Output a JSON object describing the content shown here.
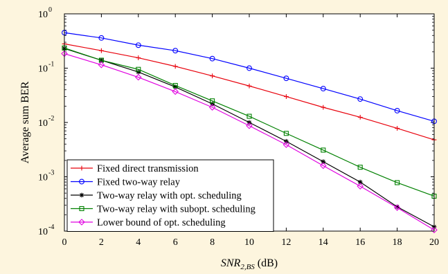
{
  "chart_data": {
    "type": "line",
    "ylabel": "Average sum BER",
    "xlabel_main": "SNR",
    "xlabel_sub": "2,BS",
    "xlabel_unit": " (dB)",
    "y_scale": "log",
    "xlim": [
      0,
      20
    ],
    "ylim": [
      0.0001,
      1
    ],
    "grid": false,
    "legend_position": "bottom-left",
    "x": [
      0,
      2,
      4,
      6,
      8,
      10,
      12,
      14,
      16,
      18,
      20
    ],
    "x_ticks": [
      "0",
      "2",
      "4",
      "6",
      "8",
      "10",
      "12",
      "14",
      "16",
      "18",
      "20"
    ],
    "y_ticks": [
      {
        "value": 1,
        "base": "10",
        "exp": "0"
      },
      {
        "value": 0.1,
        "base": "10",
        "exp": "-1"
      },
      {
        "value": 0.01,
        "base": "10",
        "exp": "-2"
      },
      {
        "value": 0.001,
        "base": "10",
        "exp": "-3"
      },
      {
        "value": 0.0001,
        "base": "10",
        "exp": "-4"
      }
    ],
    "series": [
      {
        "name": "Fixed direct transmission",
        "color": "#e8000b",
        "marker": "plus",
        "values": [
          0.28,
          0.21,
          0.155,
          0.108,
          0.072,
          0.047,
          0.03,
          0.019,
          0.0125,
          0.0078,
          0.0048
        ]
      },
      {
        "name": "Fixed two-way relay",
        "color": "#0000ff",
        "marker": "circle",
        "values": [
          0.45,
          0.36,
          0.265,
          0.21,
          0.15,
          0.1,
          0.065,
          0.042,
          0.027,
          0.0165,
          0.0105
        ]
      },
      {
        "name": "Two-way relay with opt. scheduling",
        "color": "#000000",
        "marker": "star",
        "values": [
          0.23,
          0.14,
          0.085,
          0.045,
          0.022,
          0.01,
          0.0045,
          0.0019,
          0.0008,
          0.00028,
          0.00012
        ]
      },
      {
        "name": "Two-way relay with subopt. scheduling",
        "color": "#008000",
        "marker": "square",
        "values": [
          0.235,
          0.14,
          0.095,
          0.048,
          0.025,
          0.013,
          0.0063,
          0.0031,
          0.0015,
          0.00078,
          0.00044
        ]
      },
      {
        "name": "Lower bound of opt. scheduling",
        "color": "#e000e0",
        "marker": "diamond",
        "values": [
          0.185,
          0.115,
          0.068,
          0.037,
          0.019,
          0.0087,
          0.0039,
          0.0016,
          0.00067,
          0.00027,
          0.000105
        ]
      }
    ]
  }
}
